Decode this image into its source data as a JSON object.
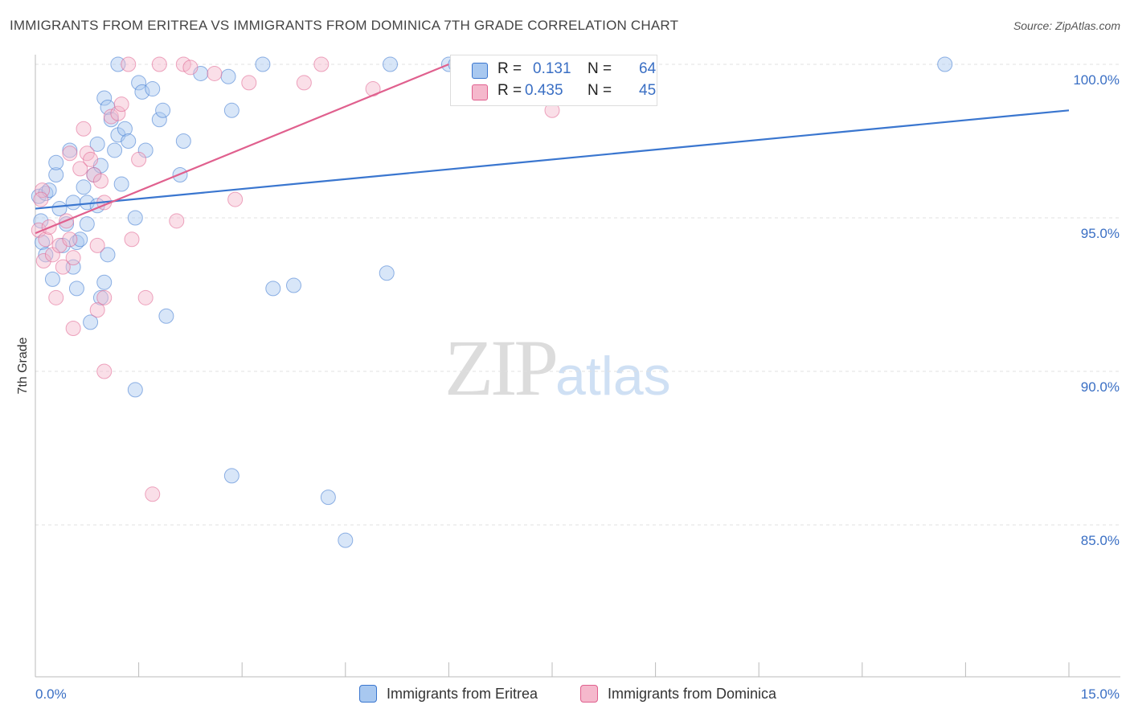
{
  "header": {
    "title": "IMMIGRANTS FROM ERITREA VS IMMIGRANTS FROM DOMINICA 7TH GRADE CORRELATION CHART",
    "source": "Source: ZipAtlas.com"
  },
  "watermark": {
    "zip": "ZIP",
    "atlas": "atlas"
  },
  "legend": {
    "rows": [
      {
        "r_label": "R =",
        "r_value": "0.131",
        "n_label": "N =",
        "n_value": "64",
        "color": "#a8c8f0"
      },
      {
        "r_label": "R =",
        "r_value": "0.435",
        "n_label": "N =",
        "n_value": "45",
        "color": "#f5b8cc"
      }
    ]
  },
  "bottom_legend": {
    "items": [
      {
        "label": "Immigrants from Eritrea",
        "color": "#a8c8f0"
      },
      {
        "label": "Immigrants from Dominica",
        "color": "#f5b8cc"
      }
    ]
  },
  "chart_data": {
    "type": "scatter",
    "ylabel": "7th Grade",
    "xlim": [
      0,
      15
    ],
    "ylim": [
      80.5,
      100.8
    ],
    "x_tick_labels": [
      {
        "value": 0,
        "label": "0.0%"
      },
      {
        "value": 15,
        "label": "15.0%"
      }
    ],
    "y_ticks": [
      {
        "value": 85,
        "label": "85.0%"
      },
      {
        "value": 90,
        "label": "90.0%"
      },
      {
        "value": 95,
        "label": "95.0%"
      },
      {
        "value": 100,
        "label": "100.0%"
      }
    ],
    "grid": true,
    "series": [
      {
        "name": "Immigrants from Eritrea",
        "color": "#3a76cf",
        "fill": "#a8c8f0",
        "trend": {
          "x0": 0,
          "y0": 95.3,
          "x1": 15,
          "y1": 98.5
        },
        "points": [
          [
            0.05,
            95.7
          ],
          [
            0.1,
            94.2
          ],
          [
            0.15,
            95.8
          ],
          [
            0.15,
            93.8
          ],
          [
            0.2,
            95.9
          ],
          [
            0.25,
            93.0
          ],
          [
            0.3,
            96.4
          ],
          [
            0.3,
            96.8
          ],
          [
            0.35,
            95.3
          ],
          [
            0.4,
            94.1
          ],
          [
            0.45,
            94.8
          ],
          [
            0.5,
            97.2
          ],
          [
            0.55,
            93.4
          ],
          [
            0.55,
            95.5
          ],
          [
            0.6,
            94.2
          ],
          [
            0.6,
            92.7
          ],
          [
            0.65,
            94.3
          ],
          [
            0.7,
            96.0
          ],
          [
            0.75,
            94.8
          ],
          [
            0.75,
            95.5
          ],
          [
            0.8,
            91.6
          ],
          [
            0.85,
            96.4
          ],
          [
            0.9,
            95.4
          ],
          [
            0.9,
            97.4
          ],
          [
            0.95,
            96.7
          ],
          [
            0.95,
            92.4
          ],
          [
            1.0,
            98.9
          ],
          [
            1.0,
            92.9
          ],
          [
            1.05,
            98.6
          ],
          [
            1.05,
            93.8
          ],
          [
            1.1,
            98.2
          ],
          [
            1.15,
            97.2
          ],
          [
            1.2,
            97.7
          ],
          [
            1.2,
            100.0
          ],
          [
            1.25,
            96.1
          ],
          [
            1.3,
            97.9
          ],
          [
            1.35,
            97.5
          ],
          [
            1.45,
            89.4
          ],
          [
            1.45,
            95.0
          ],
          [
            1.5,
            99.4
          ],
          [
            1.55,
            99.1
          ],
          [
            1.6,
            97.2
          ],
          [
            1.7,
            99.2
          ],
          [
            1.8,
            98.2
          ],
          [
            1.85,
            98.5
          ],
          [
            1.9,
            91.8
          ],
          [
            2.1,
            96.4
          ],
          [
            2.15,
            97.5
          ],
          [
            2.4,
            99.7
          ],
          [
            2.8,
            99.6
          ],
          [
            2.85,
            98.5
          ],
          [
            2.85,
            86.6
          ],
          [
            3.3,
            100.0
          ],
          [
            3.45,
            92.7
          ],
          [
            3.75,
            92.8
          ],
          [
            4.25,
            85.9
          ],
          [
            4.5,
            84.5
          ],
          [
            5.1,
            93.2
          ],
          [
            5.15,
            100.0
          ],
          [
            6.0,
            100.0
          ],
          [
            6.1,
            100.0
          ],
          [
            6.5,
            99.8
          ],
          [
            13.2,
            100.0
          ],
          [
            0.08,
            94.9
          ]
        ]
      },
      {
        "name": "Immigrants from Dominica",
        "color": "#e0608e",
        "fill": "#f5b8cc",
        "trend": {
          "x0": 0,
          "y0": 94.5,
          "x1": 6.0,
          "y1": 100.0
        },
        "points": [
          [
            0.05,
            94.6
          ],
          [
            0.1,
            95.9
          ],
          [
            0.12,
            93.6
          ],
          [
            0.15,
            94.3
          ],
          [
            0.2,
            94.7
          ],
          [
            0.25,
            93.8
          ],
          [
            0.3,
            92.4
          ],
          [
            0.35,
            94.1
          ],
          [
            0.4,
            93.4
          ],
          [
            0.45,
            94.9
          ],
          [
            0.5,
            94.3
          ],
          [
            0.5,
            97.1
          ],
          [
            0.55,
            93.7
          ],
          [
            0.55,
            91.4
          ],
          [
            0.65,
            96.6
          ],
          [
            0.7,
            97.9
          ],
          [
            0.75,
            97.1
          ],
          [
            0.8,
            96.9
          ],
          [
            0.85,
            96.4
          ],
          [
            0.9,
            92.0
          ],
          [
            0.9,
            94.1
          ],
          [
            0.95,
            96.2
          ],
          [
            1.0,
            95.5
          ],
          [
            1.0,
            92.4
          ],
          [
            1.0,
            90.0
          ],
          [
            1.1,
            98.3
          ],
          [
            1.2,
            98.4
          ],
          [
            1.25,
            98.7
          ],
          [
            1.35,
            100.0
          ],
          [
            1.4,
            94.3
          ],
          [
            1.5,
            96.9
          ],
          [
            1.6,
            92.4
          ],
          [
            1.7,
            86.0
          ],
          [
            1.8,
            100.0
          ],
          [
            2.05,
            94.9
          ],
          [
            2.15,
            100.0
          ],
          [
            2.25,
            99.9
          ],
          [
            2.6,
            99.7
          ],
          [
            2.9,
            95.6
          ],
          [
            3.1,
            99.4
          ],
          [
            3.9,
            99.4
          ],
          [
            4.15,
            100.0
          ],
          [
            4.9,
            99.2
          ],
          [
            7.5,
            98.5
          ],
          [
            0.08,
            95.6
          ]
        ]
      }
    ]
  }
}
